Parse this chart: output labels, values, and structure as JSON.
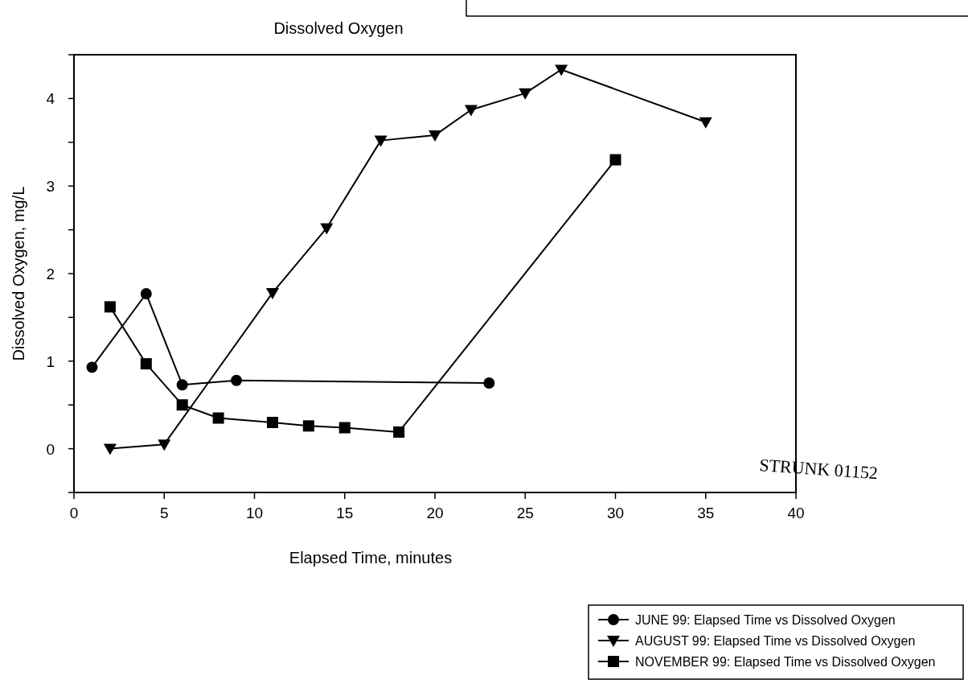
{
  "chart_data": {
    "type": "line",
    "title": "Dissolved Oxygen",
    "xlabel": "Elapsed Time, minutes",
    "ylabel": "Dissolved Oxygen, mg/L",
    "xlim": [
      0,
      40
    ],
    "xticks": [
      0,
      5,
      10,
      15,
      20,
      25,
      30,
      35,
      40
    ],
    "ylim": [
      -0.5,
      4.5
    ],
    "yticks": [
      {
        "value": -0.5,
        "label": null
      },
      0,
      {
        "value": 0.5,
        "label": null
      },
      1,
      {
        "value": 1.5,
        "label": null
      },
      2,
      {
        "value": 2.5,
        "label": null
      },
      3,
      {
        "value": 3.5,
        "label": null
      },
      4,
      {
        "value": 4.5,
        "label": null
      }
    ],
    "legend": "bottom right",
    "grid": false,
    "line_style": "solid",
    "annotations": [
      "STRUNK 01152"
    ],
    "series": [
      {
        "name": "JUNE 99:  Elapsed Time vs Dissolved Oxygen",
        "color": "#000000",
        "marker": "circle",
        "x": [
          1,
          4,
          6,
          9,
          23
        ],
        "values": [
          0.93,
          1.77,
          0.73,
          0.78,
          0.75
        ]
      },
      {
        "name": "AUGUST 99:  Elapsed Time vs Dissolved Oxygen",
        "color": "#000000",
        "marker": "triangle",
        "x": [
          2,
          5,
          11,
          14,
          17,
          20,
          22,
          25,
          27,
          35
        ],
        "values": [
          0.0,
          0.05,
          1.78,
          2.52,
          3.52,
          3.58,
          3.87,
          4.06,
          4.33,
          3.73
        ]
      },
      {
        "name": "NOVEMBER 99:  Elapsed Time vs Dissolved Oxygen",
        "color": "#000000",
        "marker": "square",
        "x": [
          2,
          4,
          6,
          8,
          11,
          13,
          15,
          18,
          30
        ],
        "values": [
          1.62,
          0.97,
          0.5,
          0.35,
          0.3,
          0.26,
          0.24,
          0.19,
          3.3
        ]
      }
    ]
  }
}
